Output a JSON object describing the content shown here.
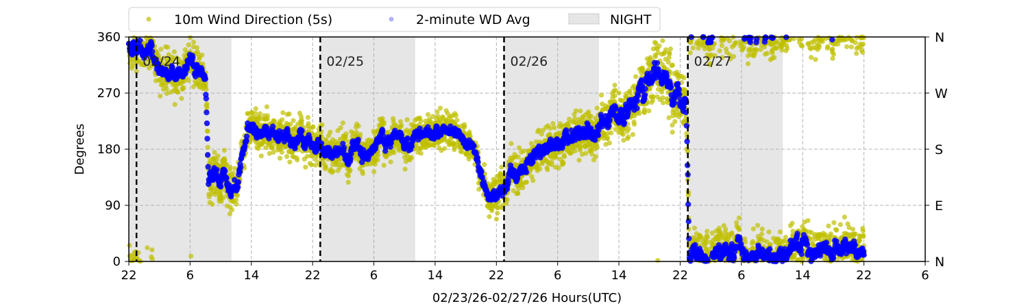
{
  "chart_data": {
    "type": "scatter",
    "title": "",
    "xlabel": "02/23/26-02/27/26  Hours(UTC)",
    "ylabel": "Degrees",
    "x_units": "hours since 02/23 22:00 UTC",
    "xlim": [
      0,
      104
    ],
    "ylim": [
      0,
      360
    ],
    "x_tick_labels": [
      "22",
      "6",
      "14",
      "22",
      "6",
      "14",
      "22",
      "6",
      "14",
      "22",
      "6",
      "14",
      "22",
      "6"
    ],
    "y_ticks": [
      0,
      90,
      180,
      270,
      360
    ],
    "y_tick_labels": [
      "0",
      "90",
      "180",
      "270",
      "360"
    ],
    "y2_tick_labels": [
      "N",
      "E",
      "S",
      "W",
      "N"
    ],
    "grid": true,
    "legend_position": "top",
    "legend": [
      "10m Wind Direction (5s)",
      "2-minute WD Avg",
      "NIGHT"
    ],
    "day_lines": [
      {
        "x": 1,
        "label": "02/24"
      },
      {
        "x": 25,
        "label": "02/25"
      },
      {
        "x": 49,
        "label": "02/26"
      },
      {
        "x": 73,
        "label": "02/27"
      }
    ],
    "night_spans": [
      [
        0,
        13.4
      ],
      [
        25,
        37.4
      ],
      [
        49,
        61.4
      ],
      [
        73,
        85.4
      ]
    ],
    "series": [
      {
        "name": "2-minute WD Avg",
        "color": "#0000ff",
        "x": [
          0,
          2,
          4,
          6,
          8,
          9,
          10,
          10.4,
          11,
          12,
          13,
          14,
          14.6,
          15.5,
          17,
          19,
          21,
          23,
          25,
          27,
          29,
          30.5,
          32,
          34,
          36,
          38,
          40,
          42,
          43.5,
          45,
          46.5,
          48,
          49,
          50,
          52,
          54,
          56,
          58,
          60,
          62,
          64,
          66,
          68,
          70,
          72,
          72.8,
          73.2,
          75,
          78,
          80,
          82,
          84,
          86,
          88,
          90,
          92,
          94,
          96
        ],
        "y": [
          340,
          335,
          322,
          302,
          322,
          312,
          290,
          130,
          140,
          135,
          118,
          112,
          150,
          205,
          212,
          205,
          200,
          188,
          180,
          175,
          168,
          172,
          195,
          200,
          197,
          200,
          205,
          210,
          205,
          180,
          130,
          102,
          128,
          140,
          165,
          180,
          195,
          205,
          212,
          222,
          238,
          255,
          285,
          290,
          270,
          262,
          10,
          15,
          20,
          10,
          5,
          15,
          20,
          25,
          20,
          22,
          12,
          10
        ]
      },
      {
        "name": "10m Wind Direction (5s)",
        "color": "#bfbf00",
        "x": [
          0,
          10,
          10.4,
          15,
          45,
          50,
          62,
          72.8,
          73.2,
          84,
          96
        ],
        "spread": [
          35,
          35,
          40,
          35,
          30,
          35,
          40,
          55,
          40,
          40,
          40
        ]
      }
    ]
  }
}
